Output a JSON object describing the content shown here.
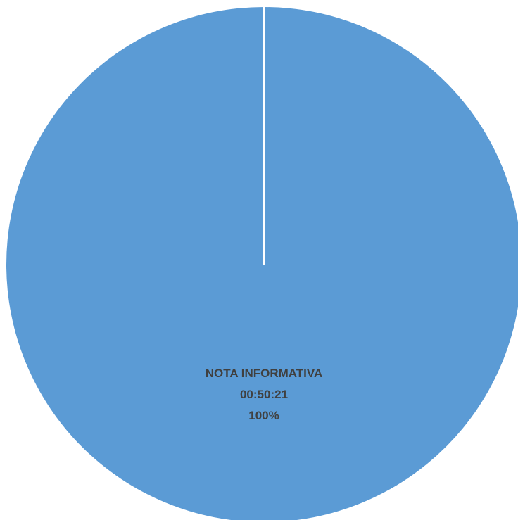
{
  "chart_data": {
    "type": "pie",
    "title": "",
    "start_angle": "12 o'clock, clockwise",
    "slices": [
      {
        "label": "NOTA INFORMATIVA",
        "value": "00:50:21",
        "percent": "100%",
        "fraction": 1.0,
        "color": "#5B9BD5"
      }
    ],
    "separator_color": "#ffffff",
    "label_color": "#404040"
  }
}
